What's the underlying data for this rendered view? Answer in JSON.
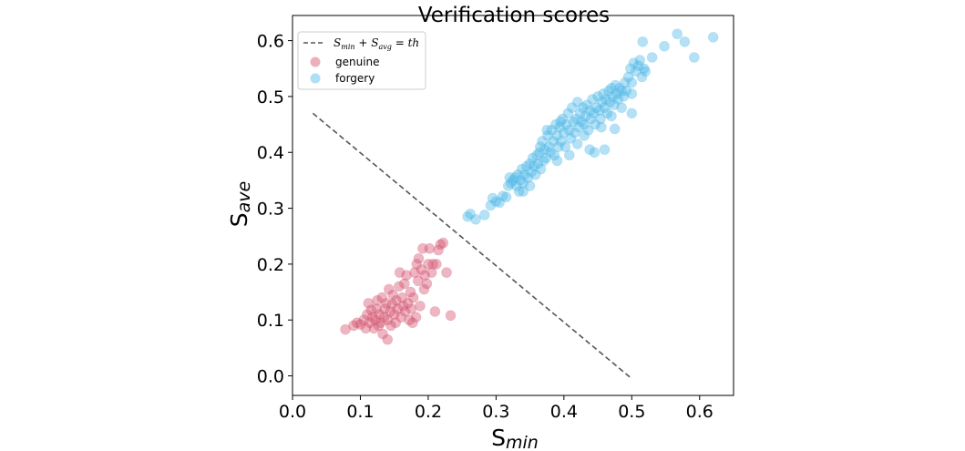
{
  "chart_data": {
    "type": "scatter",
    "title": "Verification scores",
    "xlabel": "S",
    "xlabel_sub": "min",
    "ylabel": "S",
    "ylabel_sub": "ave",
    "xlim": [
      0.0,
      0.65
    ],
    "ylim": [
      -0.035,
      0.645
    ],
    "xticks": [
      0.0,
      0.1,
      0.2,
      0.3,
      0.4,
      0.5,
      0.6
    ],
    "xtick_labels": [
      "0.0",
      "0.1",
      "0.2",
      "0.3",
      "0.4",
      "0.5",
      "0.6"
    ],
    "yticks": [
      0.0,
      0.1,
      0.2,
      0.3,
      0.4,
      0.5,
      0.6
    ],
    "ytick_labels": [
      "0.0",
      "0.1",
      "0.2",
      "0.3",
      "0.4",
      "0.5",
      "0.6"
    ],
    "grid": false,
    "legend_position": "top-left",
    "threshold_line": {
      "legend": "S_min + S_avg = th",
      "legend_parts": {
        "s1": "S",
        "sub1": "min",
        "plus": " + ",
        "s2": "S",
        "sub2": "avg",
        "eq": " = ",
        "th": "th"
      },
      "x": [
        0.03,
        0.5
      ],
      "y": [
        0.47,
        -0.005
      ],
      "color": "#555555",
      "style": "dashed"
    },
    "series": [
      {
        "name": "genuine",
        "color": "#d4506d",
        "points": [
          [
            0.078,
            0.083
          ],
          [
            0.095,
            0.095
          ],
          [
            0.1,
            0.092
          ],
          [
            0.105,
            0.1
          ],
          [
            0.108,
            0.085
          ],
          [
            0.11,
            0.11
          ],
          [
            0.112,
            0.13
          ],
          [
            0.114,
            0.095
          ],
          [
            0.116,
            0.118
          ],
          [
            0.118,
            0.105
          ],
          [
            0.12,
            0.085
          ],
          [
            0.122,
            0.1
          ],
          [
            0.124,
            0.12
          ],
          [
            0.125,
            0.135
          ],
          [
            0.127,
            0.09
          ],
          [
            0.128,
            0.11
          ],
          [
            0.13,
            0.095
          ],
          [
            0.132,
            0.14
          ],
          [
            0.133,
            0.075
          ],
          [
            0.135,
            0.105
          ],
          [
            0.136,
            0.12
          ],
          [
            0.138,
            0.13
          ],
          [
            0.14,
            0.065
          ],
          [
            0.14,
            0.1
          ],
          [
            0.142,
            0.155
          ],
          [
            0.144,
            0.115
          ],
          [
            0.145,
            0.09
          ],
          [
            0.147,
            0.128
          ],
          [
            0.148,
            0.145
          ],
          [
            0.15,
            0.11
          ],
          [
            0.152,
            0.095
          ],
          [
            0.153,
            0.135
          ],
          [
            0.155,
            0.12
          ],
          [
            0.157,
            0.16
          ],
          [
            0.158,
            0.185
          ],
          [
            0.16,
            0.105
          ],
          [
            0.162,
            0.14
          ],
          [
            0.163,
            0.125
          ],
          [
            0.165,
            0.165
          ],
          [
            0.166,
            0.115
          ],
          [
            0.168,
            0.18
          ],
          [
            0.17,
            0.13
          ],
          [
            0.172,
            0.1
          ],
          [
            0.174,
            0.15
          ],
          [
            0.175,
            0.12
          ],
          [
            0.177,
            0.095
          ],
          [
            0.178,
            0.14
          ],
          [
            0.18,
            0.185
          ],
          [
            0.182,
            0.105
          ],
          [
            0.183,
            0.2
          ],
          [
            0.185,
            0.17
          ],
          [
            0.186,
            0.21
          ],
          [
            0.188,
            0.125
          ],
          [
            0.19,
            0.19
          ],
          [
            0.192,
            0.228
          ],
          [
            0.194,
            0.155
          ],
          [
            0.195,
            0.18
          ],
          [
            0.198,
            0.165
          ],
          [
            0.2,
            0.2
          ],
          [
            0.202,
            0.228
          ],
          [
            0.205,
            0.185
          ],
          [
            0.207,
            0.2
          ],
          [
            0.21,
            0.115
          ],
          [
            0.212,
            0.2
          ],
          [
            0.215,
            0.225
          ],
          [
            0.218,
            0.235
          ],
          [
            0.222,
            0.238
          ],
          [
            0.227,
            0.185
          ],
          [
            0.233,
            0.108
          ],
          [
            0.09,
            0.09
          ]
        ]
      },
      {
        "name": "forgery",
        "color": "#4cb8e6",
        "points": [
          [
            0.258,
            0.285
          ],
          [
            0.262,
            0.29
          ],
          [
            0.27,
            0.28
          ],
          [
            0.283,
            0.288
          ],
          [
            0.292,
            0.305
          ],
          [
            0.295,
            0.318
          ],
          [
            0.3,
            0.312
          ],
          [
            0.305,
            0.31
          ],
          [
            0.31,
            0.322
          ],
          [
            0.315,
            0.32
          ],
          [
            0.318,
            0.34
          ],
          [
            0.32,
            0.355
          ],
          [
            0.322,
            0.345
          ],
          [
            0.325,
            0.35
          ],
          [
            0.328,
            0.355
          ],
          [
            0.33,
            0.34
          ],
          [
            0.332,
            0.36
          ],
          [
            0.334,
            0.33
          ],
          [
            0.336,
            0.35
          ],
          [
            0.338,
            0.37
          ],
          [
            0.34,
            0.345
          ],
          [
            0.342,
            0.36
          ],
          [
            0.345,
            0.375
          ],
          [
            0.347,
            0.355
          ],
          [
            0.35,
            0.38
          ],
          [
            0.352,
            0.365
          ],
          [
            0.354,
            0.39
          ],
          [
            0.356,
            0.375
          ],
          [
            0.358,
            0.36
          ],
          [
            0.36,
            0.395
          ],
          [
            0.362,
            0.38
          ],
          [
            0.364,
            0.4
          ],
          [
            0.366,
            0.37
          ],
          [
            0.368,
            0.42
          ],
          [
            0.37,
            0.385
          ],
          [
            0.372,
            0.405
          ],
          [
            0.374,
            0.39
          ],
          [
            0.376,
            0.43
          ],
          [
            0.378,
            0.41
          ],
          [
            0.38,
            0.4
          ],
          [
            0.382,
            0.44
          ],
          [
            0.384,
            0.42
          ],
          [
            0.386,
            0.395
          ],
          [
            0.388,
            0.45
          ],
          [
            0.39,
            0.43
          ],
          [
            0.392,
            0.41
          ],
          [
            0.394,
            0.445
          ],
          [
            0.396,
            0.42
          ],
          [
            0.398,
            0.46
          ],
          [
            0.4,
            0.435
          ],
          [
            0.402,
            0.41
          ],
          [
            0.404,
            0.45
          ],
          [
            0.406,
            0.47
          ],
          [
            0.408,
            0.44
          ],
          [
            0.41,
            0.425
          ],
          [
            0.412,
            0.48
          ],
          [
            0.414,
            0.455
          ],
          [
            0.416,
            0.435
          ],
          [
            0.418,
            0.46
          ],
          [
            0.42,
            0.49
          ],
          [
            0.422,
            0.445
          ],
          [
            0.424,
            0.47
          ],
          [
            0.426,
            0.455
          ],
          [
            0.428,
            0.48
          ],
          [
            0.43,
            0.45
          ],
          [
            0.432,
            0.465
          ],
          [
            0.434,
            0.485
          ],
          [
            0.436,
            0.44
          ],
          [
            0.438,
            0.475
          ],
          [
            0.44,
            0.46
          ],
          [
            0.442,
            0.495
          ],
          [
            0.444,
            0.47
          ],
          [
            0.446,
            0.45
          ],
          [
            0.448,
            0.48
          ],
          [
            0.45,
            0.5
          ],
          [
            0.452,
            0.475
          ],
          [
            0.454,
            0.46
          ],
          [
            0.456,
            0.49
          ],
          [
            0.458,
            0.505
          ],
          [
            0.46,
            0.48
          ],
          [
            0.462,
            0.495
          ],
          [
            0.464,
            0.47
          ],
          [
            0.466,
            0.51
          ],
          [
            0.468,
            0.49
          ],
          [
            0.47,
            0.515
          ],
          [
            0.472,
            0.5
          ],
          [
            0.474,
            0.485
          ],
          [
            0.476,
            0.52
          ],
          [
            0.478,
            0.505
          ],
          [
            0.48,
            0.495
          ],
          [
            0.482,
            0.515
          ],
          [
            0.485,
            0.51
          ],
          [
            0.488,
            0.5
          ],
          [
            0.49,
            0.525
          ],
          [
            0.492,
            0.51
          ],
          [
            0.495,
            0.535
          ],
          [
            0.498,
            0.55
          ],
          [
            0.5,
            0.525
          ],
          [
            0.503,
            0.56
          ],
          [
            0.506,
            0.545
          ],
          [
            0.51,
            0.555
          ],
          [
            0.512,
            0.565
          ],
          [
            0.515,
            0.535
          ],
          [
            0.518,
            0.55
          ],
          [
            0.52,
            0.545
          ],
          [
            0.516,
            0.598
          ],
          [
            0.53,
            0.57
          ],
          [
            0.548,
            0.59
          ],
          [
            0.567,
            0.612
          ],
          [
            0.578,
            0.598
          ],
          [
            0.592,
            0.57
          ],
          [
            0.62,
            0.606
          ],
          [
            0.46,
            0.405
          ],
          [
            0.445,
            0.4
          ],
          [
            0.42,
            0.415
          ],
          [
            0.475,
            0.442
          ],
          [
            0.5,
            0.47
          ],
          [
            0.39,
            0.385
          ],
          [
            0.408,
            0.395
          ],
          [
            0.43,
            0.43
          ],
          [
            0.438,
            0.405
          ],
          [
            0.365,
            0.41
          ],
          [
            0.375,
            0.44
          ],
          [
            0.395,
            0.455
          ],
          [
            0.455,
            0.445
          ],
          [
            0.47,
            0.465
          ],
          [
            0.485,
            0.48
          ],
          [
            0.5,
            0.505
          ],
          [
            0.35,
            0.34
          ],
          [
            0.34,
            0.33
          ]
        ]
      }
    ]
  }
}
